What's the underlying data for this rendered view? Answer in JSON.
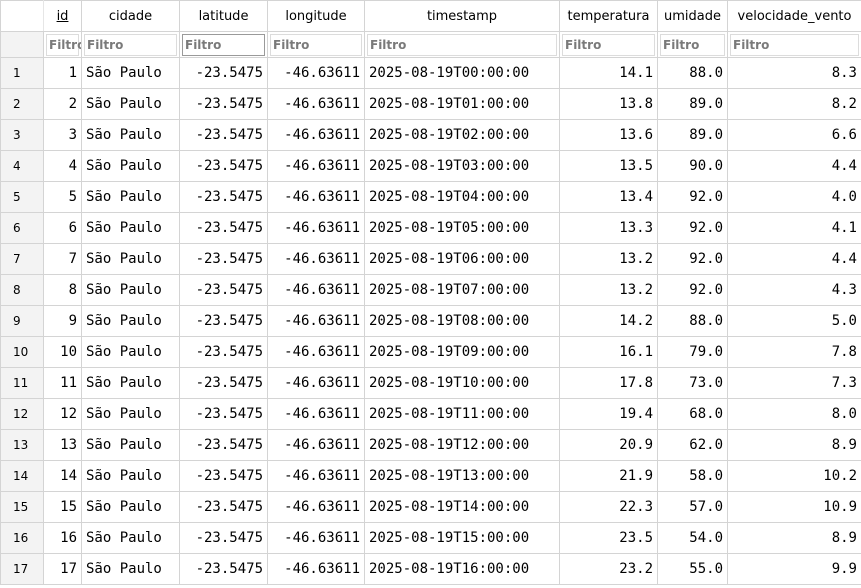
{
  "columns": [
    "id",
    "cidade",
    "latitude",
    "longitude",
    "timestamp",
    "temperatura",
    "umidade",
    "velocidade_vento"
  ],
  "filter_placeholder": "Filtro",
  "rows": [
    {
      "rn": "1",
      "id": "1",
      "cidade": "São Paulo",
      "lat": "-23.5475",
      "lon": "-46.63611",
      "ts": "2025-08-19T00:00:00",
      "temp": "14.1",
      "umid": "88.0",
      "vel": "8.3"
    },
    {
      "rn": "2",
      "id": "2",
      "cidade": "São Paulo",
      "lat": "-23.5475",
      "lon": "-46.63611",
      "ts": "2025-08-19T01:00:00",
      "temp": "13.8",
      "umid": "89.0",
      "vel": "8.2"
    },
    {
      "rn": "3",
      "id": "3",
      "cidade": "São Paulo",
      "lat": "-23.5475",
      "lon": "-46.63611",
      "ts": "2025-08-19T02:00:00",
      "temp": "13.6",
      "umid": "89.0",
      "vel": "6.6"
    },
    {
      "rn": "4",
      "id": "4",
      "cidade": "São Paulo",
      "lat": "-23.5475",
      "lon": "-46.63611",
      "ts": "2025-08-19T03:00:00",
      "temp": "13.5",
      "umid": "90.0",
      "vel": "4.4"
    },
    {
      "rn": "5",
      "id": "5",
      "cidade": "São Paulo",
      "lat": "-23.5475",
      "lon": "-46.63611",
      "ts": "2025-08-19T04:00:00",
      "temp": "13.4",
      "umid": "92.0",
      "vel": "4.0"
    },
    {
      "rn": "6",
      "id": "6",
      "cidade": "São Paulo",
      "lat": "-23.5475",
      "lon": "-46.63611",
      "ts": "2025-08-19T05:00:00",
      "temp": "13.3",
      "umid": "92.0",
      "vel": "4.1"
    },
    {
      "rn": "7",
      "id": "7",
      "cidade": "São Paulo",
      "lat": "-23.5475",
      "lon": "-46.63611",
      "ts": "2025-08-19T06:00:00",
      "temp": "13.2",
      "umid": "92.0",
      "vel": "4.4"
    },
    {
      "rn": "8",
      "id": "8",
      "cidade": "São Paulo",
      "lat": "-23.5475",
      "lon": "-46.63611",
      "ts": "2025-08-19T07:00:00",
      "temp": "13.2",
      "umid": "92.0",
      "vel": "4.3"
    },
    {
      "rn": "9",
      "id": "9",
      "cidade": "São Paulo",
      "lat": "-23.5475",
      "lon": "-46.63611",
      "ts": "2025-08-19T08:00:00",
      "temp": "14.2",
      "umid": "88.0",
      "vel": "5.0"
    },
    {
      "rn": "10",
      "id": "10",
      "cidade": "São Paulo",
      "lat": "-23.5475",
      "lon": "-46.63611",
      "ts": "2025-08-19T09:00:00",
      "temp": "16.1",
      "umid": "79.0",
      "vel": "7.8"
    },
    {
      "rn": "11",
      "id": "11",
      "cidade": "São Paulo",
      "lat": "-23.5475",
      "lon": "-46.63611",
      "ts": "2025-08-19T10:00:00",
      "temp": "17.8",
      "umid": "73.0",
      "vel": "7.3"
    },
    {
      "rn": "12",
      "id": "12",
      "cidade": "São Paulo",
      "lat": "-23.5475",
      "lon": "-46.63611",
      "ts": "2025-08-19T11:00:00",
      "temp": "19.4",
      "umid": "68.0",
      "vel": "8.0"
    },
    {
      "rn": "13",
      "id": "13",
      "cidade": "São Paulo",
      "lat": "-23.5475",
      "lon": "-46.63611",
      "ts": "2025-08-19T12:00:00",
      "temp": "20.9",
      "umid": "62.0",
      "vel": "8.9"
    },
    {
      "rn": "14",
      "id": "14",
      "cidade": "São Paulo",
      "lat": "-23.5475",
      "lon": "-46.63611",
      "ts": "2025-08-19T13:00:00",
      "temp": "21.9",
      "umid": "58.0",
      "vel": "10.2"
    },
    {
      "rn": "15",
      "id": "15",
      "cidade": "São Paulo",
      "lat": "-23.5475",
      "lon": "-46.63611",
      "ts": "2025-08-19T14:00:00",
      "temp": "22.3",
      "umid": "57.0",
      "vel": "10.9"
    },
    {
      "rn": "16",
      "id": "16",
      "cidade": "São Paulo",
      "lat": "-23.5475",
      "lon": "-46.63611",
      "ts": "2025-08-19T15:00:00",
      "temp": "23.5",
      "umid": "54.0",
      "vel": "8.9"
    },
    {
      "rn": "17",
      "id": "17",
      "cidade": "São Paulo",
      "lat": "-23.5475",
      "lon": "-46.63611",
      "ts": "2025-08-19T16:00:00",
      "temp": "23.2",
      "umid": "55.0",
      "vel": "9.9"
    }
  ]
}
